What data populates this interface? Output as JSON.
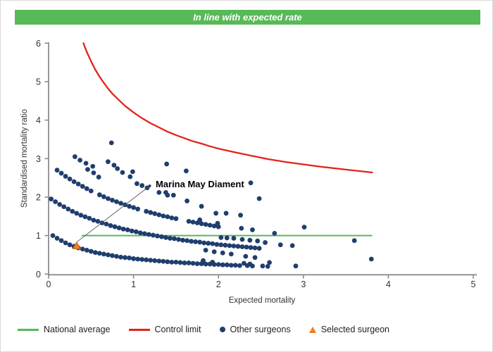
{
  "header": {
    "label": "In line with expected rate",
    "background_color": "#57b957",
    "text_color": "#ffffff"
  },
  "colors": {
    "axis": "#8c8c8c",
    "tick_text": "#333333",
    "national_average": "#57b957",
    "control_limit": "#e2231a",
    "other_surgeons": "#1f3e6e",
    "selected_surgeon": "#ef7d22",
    "selected_surgeon_border": "#c9661a",
    "leader_line": "#555555"
  },
  "legend": {
    "items": [
      {
        "label": "National average",
        "marker": "line-swatch-green"
      },
      {
        "label": "Control limit",
        "marker": "line-swatch-red"
      },
      {
        "label": "Other surgeons",
        "marker": "dot-navy"
      },
      {
        "label": "Selected surgeon",
        "marker": "triangle-orange"
      }
    ]
  },
  "chart_data": {
    "type": "scatter",
    "title": "",
    "xlabel": "Expected mortality",
    "ylabel": "Standardised mortality ratio",
    "xlim": [
      0,
      5
    ],
    "ylim": [
      0,
      6
    ],
    "x_ticks": [
      0,
      1,
      2,
      3,
      4,
      5
    ],
    "y_ticks": [
      0,
      1,
      2,
      3,
      4,
      5,
      6
    ],
    "grid": false,
    "legend_position": "bottom",
    "national_average": {
      "label": "National average",
      "y": 1,
      "x_range": [
        0.39,
        3.81
      ]
    },
    "control_limit": {
      "label": "Control limit",
      "points": [
        [
          0.41,
          6.0
        ],
        [
          0.45,
          5.77
        ],
        [
          0.5,
          5.53
        ],
        [
          0.55,
          5.31
        ],
        [
          0.6,
          5.13
        ],
        [
          0.65,
          4.97
        ],
        [
          0.7,
          4.82
        ],
        [
          0.75,
          4.69
        ],
        [
          0.8,
          4.58
        ],
        [
          0.9,
          4.37
        ],
        [
          1.0,
          4.2
        ],
        [
          1.1,
          4.05
        ],
        [
          1.2,
          3.92
        ],
        [
          1.3,
          3.81
        ],
        [
          1.4,
          3.7
        ],
        [
          1.5,
          3.61
        ],
        [
          1.6,
          3.53
        ],
        [
          1.7,
          3.45
        ],
        [
          1.8,
          3.39
        ],
        [
          1.9,
          3.32
        ],
        [
          2.0,
          3.26
        ],
        [
          2.2,
          3.16
        ],
        [
          2.4,
          3.07
        ],
        [
          2.6,
          2.98
        ],
        [
          2.8,
          2.91
        ],
        [
          3.0,
          2.85
        ],
        [
          3.2,
          2.79
        ],
        [
          3.4,
          2.74
        ],
        [
          3.6,
          2.69
        ],
        [
          3.81,
          2.64
        ]
      ]
    },
    "other_surgeons": {
      "label": "Other surgeons",
      "bands": [
        [
          [
            0.05,
            1.0
          ],
          [
            0.1,
            0.93
          ],
          [
            0.15,
            0.87
          ],
          [
            0.2,
            0.81
          ],
          [
            0.25,
            0.76
          ],
          [
            0.3,
            0.72
          ],
          [
            0.35,
            0.68
          ],
          [
            0.4,
            0.65
          ],
          [
            0.45,
            0.62
          ],
          [
            0.5,
            0.59
          ],
          [
            0.55,
            0.56
          ],
          [
            0.6,
            0.54
          ],
          [
            0.65,
            0.52
          ],
          [
            0.7,
            0.5
          ],
          [
            0.75,
            0.48
          ],
          [
            0.8,
            0.46
          ],
          [
            0.85,
            0.44
          ],
          [
            0.9,
            0.43
          ],
          [
            0.95,
            0.42
          ],
          [
            1.0,
            0.4
          ],
          [
            1.05,
            0.39
          ],
          [
            1.1,
            0.38
          ],
          [
            1.15,
            0.37
          ],
          [
            1.2,
            0.36
          ],
          [
            1.25,
            0.35
          ],
          [
            1.3,
            0.34
          ],
          [
            1.35,
            0.33
          ],
          [
            1.4,
            0.32
          ],
          [
            1.45,
            0.31
          ],
          [
            1.5,
            0.31
          ],
          [
            1.55,
            0.3
          ],
          [
            1.6,
            0.29
          ],
          [
            1.65,
            0.29
          ],
          [
            1.7,
            0.28
          ],
          [
            1.75,
            0.27
          ],
          [
            1.8,
            0.27
          ],
          [
            1.85,
            0.26
          ],
          [
            1.9,
            0.26
          ],
          [
            1.95,
            0.25
          ],
          [
            2.0,
            0.25
          ],
          [
            2.05,
            0.24
          ],
          [
            2.1,
            0.24
          ],
          [
            2.15,
            0.23
          ],
          [
            2.2,
            0.23
          ],
          [
            2.25,
            0.22
          ],
          [
            2.34,
            0.22
          ],
          [
            2.4,
            0.21
          ],
          [
            2.52,
            0.21
          ],
          [
            2.58,
            0.2
          ]
        ],
        [
          [
            0.03,
            1.95
          ],
          [
            0.08,
            1.88
          ],
          [
            0.13,
            1.81
          ],
          [
            0.18,
            1.75
          ],
          [
            0.23,
            1.69
          ],
          [
            0.28,
            1.63
          ],
          [
            0.33,
            1.58
          ],
          [
            0.38,
            1.53
          ],
          [
            0.43,
            1.49
          ],
          [
            0.48,
            1.45
          ],
          [
            0.53,
            1.4
          ],
          [
            0.58,
            1.37
          ],
          [
            0.63,
            1.33
          ],
          [
            0.68,
            1.3
          ],
          [
            0.73,
            1.26
          ],
          [
            0.78,
            1.23
          ],
          [
            0.83,
            1.2
          ],
          [
            0.88,
            1.17
          ],
          [
            0.93,
            1.15
          ],
          [
            0.98,
            1.12
          ],
          [
            1.03,
            1.1
          ],
          [
            1.08,
            1.07
          ],
          [
            1.13,
            1.05
          ],
          [
            1.18,
            1.03
          ],
          [
            1.23,
            1.01
          ],
          [
            1.28,
            0.99
          ],
          [
            1.33,
            0.97
          ],
          [
            1.38,
            0.95
          ],
          [
            1.43,
            0.93
          ],
          [
            1.48,
            0.92
          ],
          [
            1.53,
            0.9
          ],
          [
            1.58,
            0.88
          ],
          [
            1.63,
            0.87
          ],
          [
            1.68,
            0.85
          ],
          [
            1.73,
            0.84
          ],
          [
            1.78,
            0.83
          ],
          [
            1.83,
            0.81
          ],
          [
            1.88,
            0.8
          ],
          [
            1.93,
            0.79
          ],
          [
            1.98,
            0.77
          ],
          [
            2.03,
            0.76
          ],
          [
            2.08,
            0.75
          ],
          [
            2.13,
            0.74
          ],
          [
            2.18,
            0.73
          ],
          [
            2.23,
            0.72
          ],
          [
            2.28,
            0.71
          ],
          [
            2.33,
            0.7
          ],
          [
            2.38,
            0.69
          ],
          [
            2.43,
            0.68
          ],
          [
            2.48,
            0.67
          ]
        ],
        [
          [
            0.1,
            2.7
          ],
          [
            0.15,
            2.62
          ],
          [
            0.2,
            2.54
          ],
          [
            0.25,
            2.47
          ],
          [
            0.3,
            2.4
          ],
          [
            0.35,
            2.34
          ],
          [
            0.4,
            2.28
          ],
          [
            0.45,
            2.22
          ],
          [
            0.5,
            2.16
          ],
          [
            0.6,
            2.06
          ],
          [
            0.65,
            2.01
          ],
          [
            0.7,
            1.96
          ],
          [
            0.75,
            1.92
          ],
          [
            0.8,
            1.88
          ],
          [
            0.85,
            1.84
          ],
          [
            0.9,
            1.8
          ],
          [
            0.95,
            1.76
          ],
          [
            1.0,
            1.73
          ],
          [
            1.05,
            1.69
          ],
          [
            1.15,
            1.63
          ],
          [
            1.2,
            1.6
          ],
          [
            1.25,
            1.57
          ],
          [
            1.3,
            1.54
          ],
          [
            1.35,
            1.51
          ],
          [
            1.4,
            1.49
          ],
          [
            1.45,
            1.46
          ],
          [
            1.5,
            1.44
          ],
          [
            1.65,
            1.37
          ],
          [
            1.7,
            1.35
          ],
          [
            1.75,
            1.33
          ],
          [
            1.8,
            1.31
          ],
          [
            1.85,
            1.29
          ],
          [
            1.9,
            1.27
          ],
          [
            1.95,
            1.25
          ],
          [
            2.0,
            1.23
          ]
        ],
        [
          [
            0.31,
            3.05
          ],
          [
            0.37,
            2.96
          ],
          [
            0.44,
            2.88
          ],
          [
            0.52,
            2.8
          ],
          [
            0.7,
            2.92
          ],
          [
            0.77,
            2.83
          ],
          [
            1.04,
            2.35
          ],
          [
            1.1,
            2.3
          ],
          [
            1.16,
            2.24
          ],
          [
            1.3,
            2.12
          ],
          [
            1.4,
            2.05
          ]
        ]
      ],
      "points": [
        [
          0.74,
          3.41
        ],
        [
          0.46,
          2.72
        ],
        [
          0.53,
          2.63
        ],
        [
          0.59,
          2.52
        ],
        [
          0.81,
          2.74
        ],
        [
          0.87,
          2.64
        ],
        [
          0.99,
          2.66
        ],
        [
          0.96,
          2.53
        ],
        [
          1.39,
          2.86
        ],
        [
          1.62,
          2.68
        ],
        [
          1.38,
          2.12
        ],
        [
          1.47,
          2.05
        ],
        [
          1.63,
          1.9
        ],
        [
          2.38,
          2.37
        ],
        [
          2.48,
          1.96
        ],
        [
          1.8,
          1.76
        ],
        [
          2.09,
          1.58
        ],
        [
          2.26,
          1.53
        ],
        [
          1.97,
          1.58
        ],
        [
          1.78,
          1.41
        ],
        [
          1.99,
          1.32
        ],
        [
          2.27,
          1.19
        ],
        [
          2.4,
          1.15
        ],
        [
          3.01,
          1.22
        ],
        [
          2.66,
          1.06
        ],
        [
          2.03,
          0.95
        ],
        [
          2.1,
          0.94
        ],
        [
          2.18,
          0.93
        ],
        [
          2.28,
          0.9
        ],
        [
          2.37,
          0.88
        ],
        [
          2.46,
          0.86
        ],
        [
          2.55,
          0.82
        ],
        [
          2.73,
          0.76
        ],
        [
          2.87,
          0.74
        ],
        [
          3.6,
          0.87
        ],
        [
          1.85,
          0.62
        ],
        [
          1.95,
          0.58
        ],
        [
          2.05,
          0.55
        ],
        [
          2.15,
          0.52
        ],
        [
          2.32,
          0.46
        ],
        [
          2.43,
          0.43
        ],
        [
          1.82,
          0.35
        ],
        [
          1.93,
          0.31
        ],
        [
          2.3,
          0.28
        ],
        [
          2.37,
          0.26
        ],
        [
          2.6,
          0.3
        ],
        [
          2.91,
          0.21
        ],
        [
          3.8,
          0.39
        ]
      ]
    },
    "selected_surgeon": {
      "label": "Selected surgeon",
      "name": "Marina May Diament",
      "x": 0.33,
      "y": 0.72
    },
    "annotation": {
      "text": "Marina May Diament",
      "text_pos": [
        1.26,
        2.26
      ],
      "leader_from": [
        1.19,
        2.29
      ],
      "leader_to": [
        0.33,
        0.83
      ]
    }
  }
}
